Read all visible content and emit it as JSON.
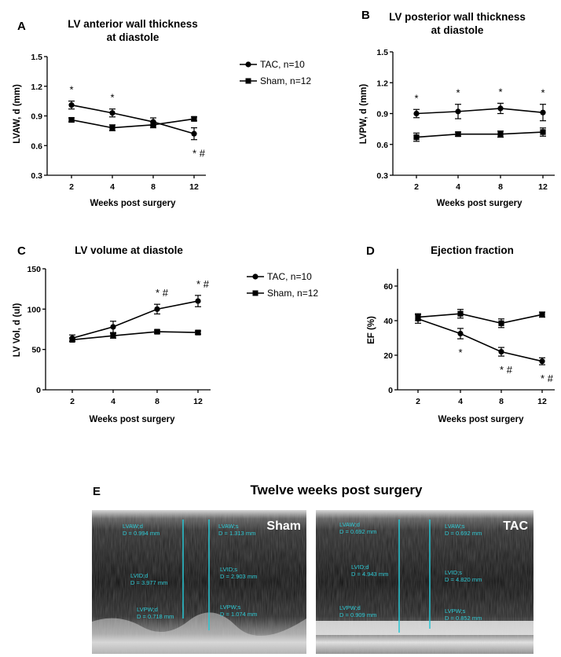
{
  "charts": [
    {
      "panel_label": "A",
      "title_lines": [
        "LV anterior wall thickness",
        "at diastole"
      ],
      "xlabel": "Weeks post surgery",
      "ylabel": "LVAW, d (mm)",
      "legend": [
        "TAC, n=10",
        "Sham, n=12"
      ],
      "y_ticks": [
        "0.3",
        "0.6",
        "0.9",
        "1.2",
        "1.5"
      ]
    },
    {
      "panel_label": "B",
      "title_lines": [
        "LV posterior wall thickness",
        "at diastole"
      ],
      "xlabel": "Weeks post surgery",
      "ylabel": "LVPW, d (mm)",
      "legend": [],
      "y_ticks": [
        "0.3",
        "0.6",
        "0.9",
        "1.2",
        "1.5"
      ]
    },
    {
      "panel_label": "C",
      "title_lines": [
        "LV volume at diastole"
      ],
      "xlabel": "Weeks post surgery",
      "ylabel": "LV Vol, d (ul)",
      "legend": [
        "TAC, n=10",
        "Sham, n=12"
      ],
      "y_ticks": [
        "0",
        "50",
        "100",
        "150"
      ]
    },
    {
      "panel_label": "D",
      "title_lines": [
        "Ejection fraction"
      ],
      "xlabel": "Weeks post surgery",
      "ylabel": "EF (%)",
      "legend": [],
      "y_ticks": [
        "0",
        "20",
        "40",
        "60"
      ]
    }
  ],
  "chart_data": [
    {
      "type": "line",
      "title": "LV anterior wall thickness at diastole",
      "xlabel": "Weeks post surgery",
      "ylabel": "LVAW, d (mm)",
      "categories": [
        "2",
        "4",
        "8",
        "12"
      ],
      "ylim": [
        0.3,
        1.5
      ],
      "legend_position": "right",
      "series": [
        {
          "name": "TAC, n=10",
          "marker": "circle",
          "values": [
            1.01,
            0.93,
            0.84,
            0.72
          ],
          "errors": [
            0.04,
            0.04,
            0.04,
            0.06
          ]
        },
        {
          "name": "Sham, n=12",
          "marker": "square",
          "values": [
            0.86,
            0.78,
            0.81,
            0.87
          ],
          "errors": [
            0.02,
            0.03,
            0.03,
            0.02
          ]
        }
      ],
      "annotations": [
        {
          "x": "2",
          "text": "*",
          "position": "above"
        },
        {
          "x": "4",
          "text": "*",
          "position": "above"
        },
        {
          "x": "12",
          "text": "*  #",
          "position": "below"
        }
      ]
    },
    {
      "type": "line",
      "title": "LV posterior wall thickness at diastole",
      "xlabel": "Weeks post surgery",
      "ylabel": "LVPW, d (mm)",
      "categories": [
        "2",
        "4",
        "8",
        "12"
      ],
      "ylim": [
        0.3,
        1.5
      ],
      "series": [
        {
          "name": "TAC, n=10",
          "marker": "circle",
          "values": [
            0.9,
            0.92,
            0.95,
            0.91
          ],
          "errors": [
            0.04,
            0.07,
            0.05,
            0.08
          ]
        },
        {
          "name": "Sham, n=12",
          "marker": "square",
          "values": [
            0.67,
            0.7,
            0.7,
            0.72
          ],
          "errors": [
            0.04,
            0.02,
            0.03,
            0.04
          ]
        }
      ],
      "annotations": [
        {
          "x": "2",
          "text": "*",
          "position": "above"
        },
        {
          "x": "4",
          "text": "*",
          "position": "above"
        },
        {
          "x": "8",
          "text": "*",
          "position": "above"
        },
        {
          "x": "12",
          "text": "*",
          "position": "above"
        }
      ]
    },
    {
      "type": "line",
      "title": "LV volume at diastole",
      "xlabel": "Weeks post surgery",
      "ylabel": "LV Vol, d (ul)",
      "categories": [
        "2",
        "4",
        "8",
        "12"
      ],
      "ylim": [
        0,
        150
      ],
      "legend_position": "right",
      "series": [
        {
          "name": "TAC, n=10",
          "marker": "circle",
          "values": [
            64,
            78,
            100,
            110
          ],
          "errors": [
            4,
            7,
            6,
            7
          ]
        },
        {
          "name": "Sham, n=12",
          "marker": "square",
          "values": [
            62,
            67,
            72,
            71
          ],
          "errors": [
            2,
            3,
            2,
            2
          ]
        }
      ],
      "annotations": [
        {
          "x": "8",
          "text": "*  #",
          "position": "above"
        },
        {
          "x": "12",
          "text": "*  #",
          "position": "above"
        }
      ]
    },
    {
      "type": "line",
      "title": "Ejection fraction",
      "xlabel": "Weeks post surgery",
      "ylabel": "EF (%)",
      "categories": [
        "2",
        "4",
        "8",
        "12"
      ],
      "ylim": [
        0,
        70
      ],
      "series": [
        {
          "name": "TAC, n=10",
          "marker": "circle",
          "values": [
            41,
            32.5,
            22,
            16.5
          ],
          "errors": [
            2.5,
            3,
            2.5,
            2
          ]
        },
        {
          "name": "Sham, n=12",
          "marker": "square",
          "values": [
            42,
            44,
            38.5,
            43.5
          ],
          "errors": [
            2,
            2.5,
            2.5,
            1.5
          ]
        }
      ],
      "annotations": [
        {
          "x": "4",
          "text": "*",
          "position": "below"
        },
        {
          "x": "8",
          "text": "*  #",
          "position": "below"
        },
        {
          "x": "12",
          "text": "*  #",
          "position": "below"
        }
      ]
    }
  ],
  "panel_e": {
    "panel_label": "E",
    "title": "Twelve weeks post surgery",
    "images": [
      {
        "label": "Sham",
        "measurements": [
          "LVAW;d",
          "D = 0.994 mm",
          "LVAW;s",
          "D = 1.313 mm",
          "LVID;d",
          "D = 3.977 mm",
          "LVID;s",
          "D = 2.903 mm",
          "LVPW;d",
          "D = 0.718 mm",
          "LVPW;s",
          "D = 1.074 mm"
        ]
      },
      {
        "label": "TAC",
        "measurements": [
          "LVAW;d",
          "D = 0.692 mm",
          "LVAW;s",
          "D = 0.692 mm",
          "LVID;d",
          "D = 4.943 mm",
          "LVID;s",
          "D = 4.820 mm",
          "LVPW;d",
          "D = 0.909 mm",
          "LVPW;s",
          "D = 0.852 mm"
        ]
      }
    ]
  },
  "colors": {
    "line": "#000000",
    "echo_bg": "#1f1f1f",
    "echo_marker": "#27c6d4"
  }
}
